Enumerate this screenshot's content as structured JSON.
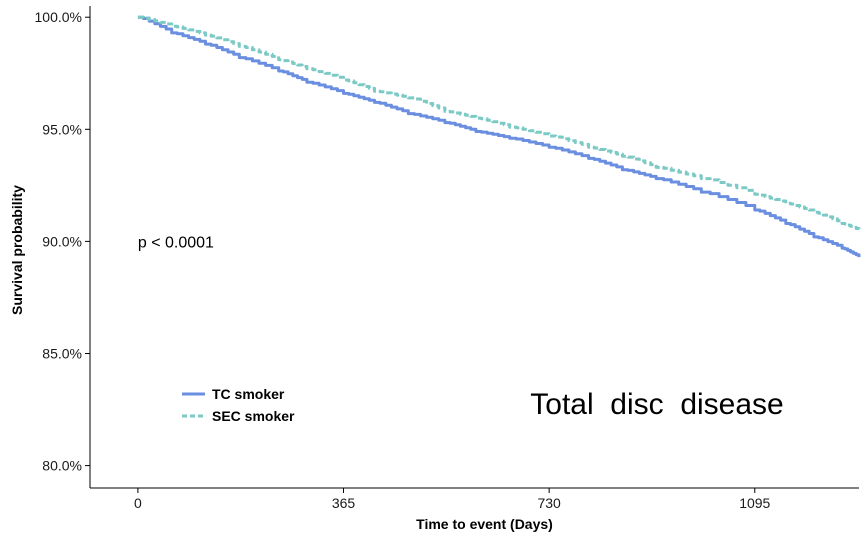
{
  "chart_data": {
    "type": "line",
    "title": "",
    "xlabel": "Time to event (Days)",
    "ylabel": "Survival probability",
    "xlim": [
      -85,
      1280
    ],
    "ylim": [
      0.79,
      1.005
    ],
    "xticks": [
      0,
      365,
      730,
      1095
    ],
    "xtick_labels": [
      "0",
      "365",
      "730",
      "1095"
    ],
    "yticks": [
      0.8,
      0.85,
      0.9,
      0.95,
      1.0
    ],
    "ytick_labels": [
      "80.0%",
      "85.0%",
      "90.0%",
      "95.0%",
      "100.0%"
    ],
    "grid": false,
    "legend_placement": "bottom-left",
    "series": [
      {
        "name": "TC smoker",
        "color": "#6B8FE0",
        "dash": "solid",
        "x": [
          0,
          60,
          120,
          180,
          250,
          300,
          365,
          420,
          480,
          545,
          600,
          660,
          730,
          800,
          860,
          920,
          1000,
          1095,
          1150,
          1200,
          1250,
          1280
        ],
        "y": [
          1.0,
          0.993,
          0.988,
          0.982,
          0.976,
          0.971,
          0.966,
          0.962,
          0.957,
          0.953,
          0.949,
          0.946,
          0.942,
          0.937,
          0.932,
          0.928,
          0.922,
          0.914,
          0.908,
          0.902,
          0.897,
          0.893
        ]
      },
      {
        "name": "SEC smoker",
        "color": "#7CCAC6",
        "dash": "dashed",
        "x": [
          0,
          60,
          120,
          180,
          250,
          300,
          365,
          420,
          480,
          545,
          600,
          660,
          730,
          800,
          860,
          920,
          1000,
          1095,
          1150,
          1200,
          1250,
          1280
        ],
        "y": [
          1.0,
          0.996,
          0.992,
          0.987,
          0.981,
          0.977,
          0.972,
          0.967,
          0.964,
          0.958,
          0.955,
          0.951,
          0.947,
          0.942,
          0.938,
          0.933,
          0.928,
          0.921,
          0.917,
          0.913,
          0.908,
          0.905
        ]
      }
    ],
    "annotations": [
      {
        "text": "p < 0.0001",
        "x": 0,
        "y": 0.9
      },
      {
        "text": "Total  disc  disease",
        "x": 1035,
        "y": 0.827
      }
    ]
  }
}
